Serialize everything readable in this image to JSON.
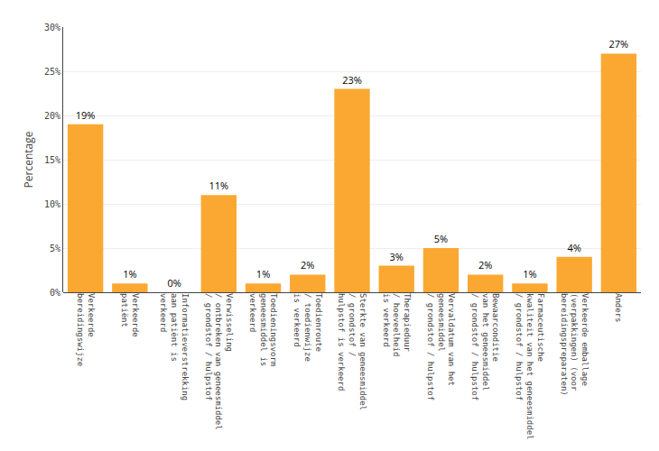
{
  "chart_data": {
    "type": "bar",
    "categories": [
      "Verkeerde\nbereidingswijze",
      "Verkeerde\npatiënt",
      "Informatieverstrekking\naan patiënt is\nverkeerd",
      "Verwisseling\n/ ontbreken van geneesmiddel\n/ grondstof / hulpstof",
      "Toedieningsvorm\ngeneesmiddel is\nverkeerd",
      "Toedienroute\n/ toedienwijze\nis verkeerd",
      "Sterkte van geneesmiddel\n/ grondstof /\nhulpstof is verkeerd",
      "Therapieduur\n/ hoeveelheid\nis verkeerd",
      "Vervaldatum van het\ngeneesmiddel\n/ grondstof / hulpstof",
      "Bewaarconditie\nvan het geneesmiddel\n/ grondstof / hulpstof",
      "Farmaceutische\nkwaliteit van het geneesmiddel\n/ grondstof / hulpstof",
      "Verkeerde emballage\n(verpakkingen) (voor\nbereidingspreparaten)",
      "Anders"
    ],
    "values": [
      19,
      1,
      0,
      11,
      1,
      2,
      23,
      3,
      5,
      2,
      1,
      4,
      27
    ],
    "value_labels": [
      "19%",
      "1%",
      "0%",
      "11%",
      "1%",
      "2%",
      "23%",
      "3%",
      "5%",
      "2%",
      "1%",
      "4%",
      "27%"
    ],
    "data_labels": true,
    "color": "#FBA832",
    "ylabel": "Percentage",
    "ylim": [
      0,
      30
    ],
    "yticks": [
      {
        "value": 0,
        "label": "0%"
      },
      {
        "value": 5,
        "label": "5%"
      },
      {
        "value": 10,
        "label": "10%"
      },
      {
        "value": 15,
        "label": "15%"
      },
      {
        "value": 20,
        "label": "20%"
      },
      {
        "value": 25,
        "label": "25%"
      },
      {
        "value": 30,
        "label": "30%"
      }
    ],
    "grid": true
  }
}
